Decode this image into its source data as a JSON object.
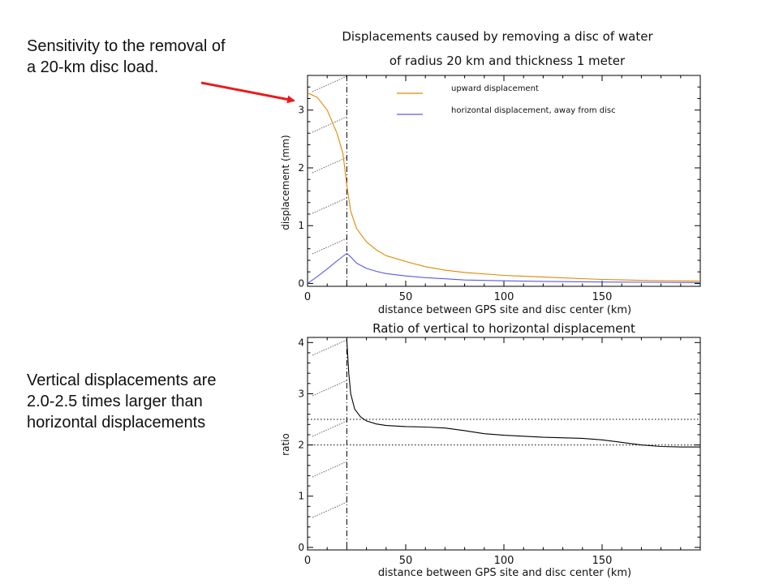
{
  "notes": {
    "top": "Sensitivity to the removal of\na 20-km disc load.",
    "bottom": "Vertical displacements are\n2.0-2.5 times larger than\nhorizontal displacements"
  },
  "colors": {
    "upward": "#e08a00",
    "horizontal": "#5a5ae6",
    "ratio": "#000000",
    "arrow": "#e81c1c"
  },
  "chart_data": [
    {
      "type": "line",
      "title": "Displacements caused by removing a disc of water",
      "subtitle": "of radius 20 km and thickness 1 meter",
      "xlabel": "distance between GPS site and disc center (km)",
      "ylabel": "displacement (mm)",
      "xlim": [
        0,
        200
      ],
      "ylim": [
        -0.05,
        3.6
      ],
      "xticks": [
        0,
        50,
        100,
        150
      ],
      "yticks": [
        0,
        1,
        2,
        3
      ],
      "legend_position": "top-center",
      "disc_edge_x": 20,
      "series": [
        {
          "name": "upward displacement",
          "color": "#e08a00",
          "x": [
            0,
            5,
            10,
            15,
            18,
            20,
            22,
            25,
            30,
            35,
            40,
            50,
            60,
            70,
            80,
            100,
            120,
            150,
            175,
            200
          ],
          "y": [
            3.3,
            3.22,
            3.0,
            2.6,
            2.25,
            1.7,
            1.25,
            0.95,
            0.72,
            0.58,
            0.48,
            0.38,
            0.29,
            0.23,
            0.19,
            0.14,
            0.11,
            0.07,
            0.05,
            0.04
          ]
        },
        {
          "name": "horizontal displacement, away from disc",
          "color": "#5a5ae6",
          "x": [
            0,
            5,
            10,
            15,
            18,
            20,
            22,
            25,
            30,
            35,
            40,
            50,
            60,
            70,
            80,
            100,
            120,
            150,
            175,
            200
          ],
          "y": [
            0.0,
            0.12,
            0.25,
            0.39,
            0.47,
            0.52,
            0.46,
            0.35,
            0.26,
            0.21,
            0.17,
            0.13,
            0.1,
            0.08,
            0.06,
            0.045,
            0.035,
            0.025,
            0.02,
            0.015
          ]
        }
      ]
    },
    {
      "type": "line",
      "title": "Ratio of vertical to horizontal displacement",
      "xlabel": "distance between GPS site and disc center (km)",
      "ylabel": "ratio",
      "xlim": [
        0,
        200
      ],
      "ylim": [
        -0.05,
        4.1
      ],
      "xticks": [
        0,
        50,
        100,
        150
      ],
      "yticks": [
        0,
        1,
        2,
        3,
        4
      ],
      "disc_edge_x": 20,
      "reference_lines": [
        2.0,
        2.5
      ],
      "series": [
        {
          "color": "#000000",
          "x": [
            20,
            21,
            22,
            24,
            27,
            30,
            35,
            40,
            50,
            60,
            70,
            80,
            90,
            100,
            110,
            120,
            140,
            150,
            160,
            170,
            180,
            190,
            200
          ],
          "y": [
            4.05,
            3.4,
            3.0,
            2.7,
            2.55,
            2.47,
            2.41,
            2.38,
            2.36,
            2.35,
            2.33,
            2.28,
            2.22,
            2.19,
            2.17,
            2.15,
            2.13,
            2.1,
            2.05,
            2.0,
            1.97,
            1.96,
            1.96
          ]
        }
      ]
    }
  ]
}
